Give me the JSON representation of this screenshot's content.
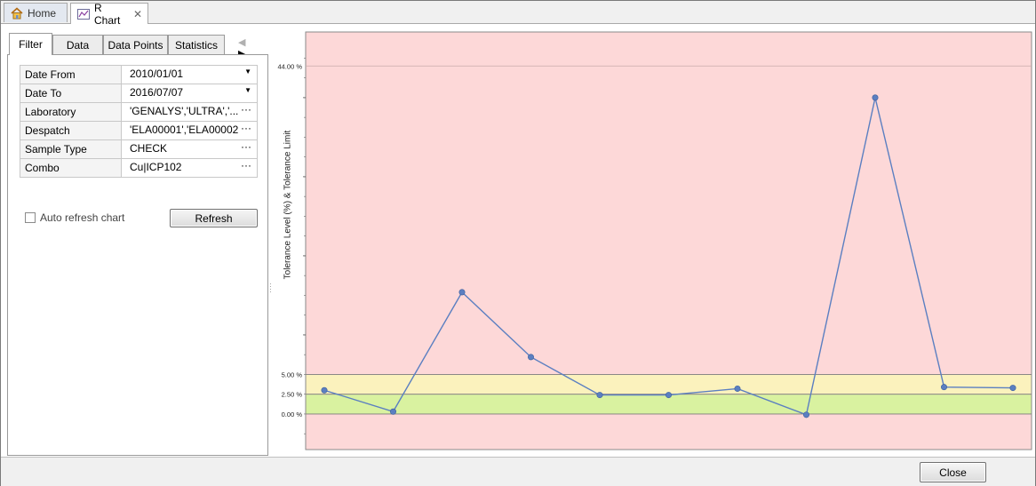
{
  "tabs": {
    "home": "Home",
    "rchart": "R Chart"
  },
  "left": {
    "tabs": [
      "Filter",
      "Data",
      "Data Points",
      "Statistics"
    ],
    "filters": [
      {
        "label": "Date From",
        "value": "2010/01/01",
        "control": "dropdown"
      },
      {
        "label": "Date To",
        "value": "2016/07/07",
        "control": "dropdown"
      },
      {
        "label": "Laboratory",
        "value": "'GENALYS','ULTRA','...",
        "control": "ellipsis"
      },
      {
        "label": "Despatch",
        "value": "'ELA00001','ELA00002...",
        "control": "ellipsis"
      },
      {
        "label": "Sample Type",
        "value": "CHECK",
        "control": "ellipsis"
      },
      {
        "label": "Combo",
        "value": "Cu|ICP102",
        "control": "ellipsis"
      }
    ],
    "auto_refresh_label": "Auto refresh chart",
    "auto_refresh_checked": false,
    "refresh_label": "Refresh"
  },
  "chart_data": {
    "type": "line",
    "ylabel": "Tolerance Level (%) & Tolerance Limit",
    "y_ticks": [
      {
        "value": 0,
        "label": "0.00 %"
      },
      {
        "value": 2.5,
        "label": "2.50 %"
      },
      {
        "value": 5,
        "label": "5.00 %"
      },
      {
        "value": 44,
        "label": "44.00 %"
      }
    ],
    "ylim": [
      -4.5,
      48.3
    ],
    "bands": [
      {
        "from": 0,
        "to": 2.5,
        "color": "#d9f2a0"
      },
      {
        "from": 2.5,
        "to": 5,
        "color": "#fbf2bd"
      }
    ],
    "background_color": "#fdd8d8",
    "series_color": "#5b7fc1",
    "series": [
      {
        "values": [
          3.0,
          0.3,
          15.4,
          7.2,
          2.4,
          2.4,
          3.2,
          -0.1,
          40.0,
          3.4,
          3.3
        ]
      }
    ]
  },
  "footer": {
    "close_label": "Close"
  }
}
